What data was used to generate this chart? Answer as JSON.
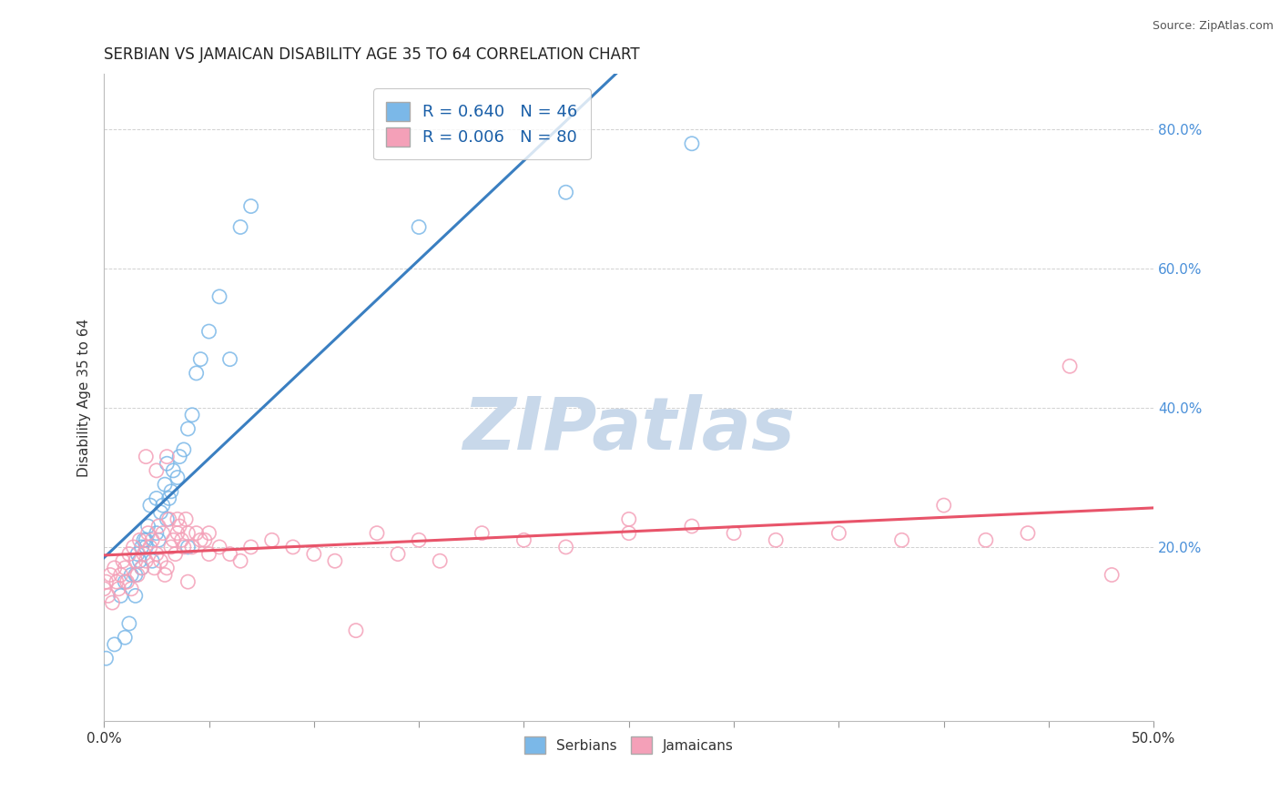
{
  "title": "SERBIAN VS JAMAICAN DISABILITY AGE 35 TO 64 CORRELATION CHART",
  "source_text": "Source: ZipAtlas.com",
  "ylabel": "Disability Age 35 to 64",
  "xlim": [
    0.0,
    0.5
  ],
  "ylim": [
    -0.05,
    0.88
  ],
  "xtick_labels": [
    "0.0%",
    "",
    "",
    "",
    "",
    "",
    "",
    "",
    "",
    "",
    "50.0%"
  ],
  "xtick_values": [
    0.0,
    0.05,
    0.1,
    0.15,
    0.2,
    0.25,
    0.3,
    0.35,
    0.4,
    0.45,
    0.5
  ],
  "ytick_labels": [
    "20.0%",
    "40.0%",
    "60.0%",
    "80.0%"
  ],
  "ytick_values": [
    0.2,
    0.4,
    0.6,
    0.8
  ],
  "serbian_color": "#7bb8e8",
  "jamaican_color": "#f4a0b8",
  "serbian_line_color": "#3a7fc1",
  "jamaican_line_color": "#e8546a",
  "R_serbian": 0.64,
  "N_serbian": 46,
  "R_jamaican": 0.006,
  "N_jamaican": 80,
  "legend_label_serbian": "Serbians",
  "legend_label_jamaican": "Jamaicans",
  "watermark": "ZIPatlas",
  "watermark_color": "#c8d8ea",
  "background_color": "#ffffff",
  "title_fontsize": 12,
  "serbian_x": [
    0.001,
    0.005,
    0.008,
    0.01,
    0.012,
    0.013,
    0.015,
    0.015,
    0.016,
    0.017,
    0.018,
    0.019,
    0.02,
    0.021,
    0.022,
    0.023,
    0.025,
    0.026,
    0.027,
    0.028,
    0.029,
    0.03,
    0.031,
    0.032,
    0.033,
    0.035,
    0.036,
    0.038,
    0.04,
    0.042,
    0.044,
    0.046,
    0.05,
    0.055,
    0.06,
    0.065,
    0.07,
    0.15,
    0.22,
    0.28,
    0.01,
    0.018,
    0.02,
    0.025,
    0.03,
    0.04
  ],
  "serbian_y": [
    0.04,
    0.06,
    0.13,
    0.07,
    0.09,
    0.16,
    0.13,
    0.16,
    0.19,
    0.18,
    0.2,
    0.21,
    0.21,
    0.23,
    0.26,
    0.18,
    0.22,
    0.21,
    0.25,
    0.26,
    0.29,
    0.24,
    0.27,
    0.28,
    0.31,
    0.3,
    0.33,
    0.34,
    0.37,
    0.39,
    0.45,
    0.47,
    0.51,
    0.56,
    0.47,
    0.66,
    0.69,
    0.66,
    0.71,
    0.78,
    0.15,
    0.17,
    0.2,
    0.27,
    0.32,
    0.2
  ],
  "jamaican_x": [
    0.0,
    0.001,
    0.002,
    0.003,
    0.004,
    0.005,
    0.006,
    0.007,
    0.008,
    0.009,
    0.01,
    0.011,
    0.012,
    0.013,
    0.014,
    0.015,
    0.016,
    0.017,
    0.018,
    0.019,
    0.02,
    0.021,
    0.022,
    0.023,
    0.024,
    0.025,
    0.026,
    0.027,
    0.028,
    0.029,
    0.03,
    0.031,
    0.032,
    0.033,
    0.034,
    0.035,
    0.036,
    0.037,
    0.038,
    0.039,
    0.04,
    0.042,
    0.044,
    0.046,
    0.048,
    0.05,
    0.055,
    0.06,
    0.065,
    0.07,
    0.08,
    0.09,
    0.1,
    0.11,
    0.12,
    0.13,
    0.14,
    0.15,
    0.16,
    0.18,
    0.2,
    0.22,
    0.25,
    0.28,
    0.3,
    0.32,
    0.35,
    0.38,
    0.4,
    0.42,
    0.44,
    0.46,
    0.48,
    0.02,
    0.025,
    0.03,
    0.035,
    0.04,
    0.05,
    0.25
  ],
  "jamaican_y": [
    0.14,
    0.15,
    0.13,
    0.16,
    0.12,
    0.17,
    0.15,
    0.14,
    0.16,
    0.18,
    0.17,
    0.15,
    0.19,
    0.14,
    0.2,
    0.18,
    0.16,
    0.21,
    0.17,
    0.19,
    0.18,
    0.22,
    0.2,
    0.21,
    0.17,
    0.19,
    0.23,
    0.18,
    0.22,
    0.16,
    0.17,
    0.24,
    0.2,
    0.21,
    0.19,
    0.22,
    0.23,
    0.21,
    0.2,
    0.24,
    0.22,
    0.2,
    0.22,
    0.21,
    0.21,
    0.19,
    0.2,
    0.19,
    0.18,
    0.2,
    0.21,
    0.2,
    0.19,
    0.18,
    0.08,
    0.22,
    0.19,
    0.21,
    0.18,
    0.22,
    0.21,
    0.2,
    0.22,
    0.23,
    0.22,
    0.21,
    0.22,
    0.21,
    0.26,
    0.21,
    0.22,
    0.46,
    0.16,
    0.33,
    0.31,
    0.33,
    0.24,
    0.15,
    0.22,
    0.24
  ]
}
